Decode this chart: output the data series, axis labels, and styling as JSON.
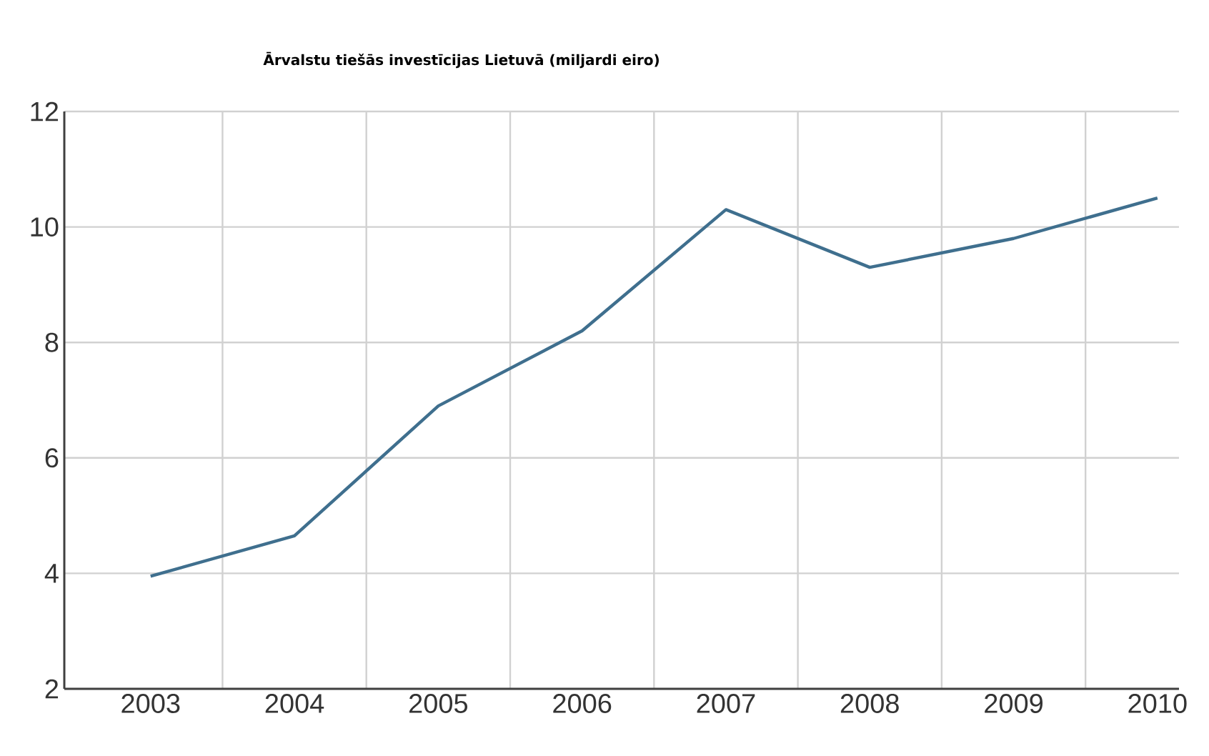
{
  "chart_data": {
    "type": "line",
    "title": "Ārvalstu tiešās investīcijas Lietuvā (miljardi eiro)",
    "categories": [
      "2003",
      "2004",
      "2005",
      "2006",
      "2007",
      "2008",
      "2009",
      "2010"
    ],
    "series": [
      {
        "color": "#3f6f8e",
        "values": [
          3.95,
          4.65,
          6.9,
          8.2,
          10.3,
          9.3,
          9.8,
          10.5
        ]
      }
    ],
    "ylim": [
      2,
      12
    ],
    "yticks": [
      2,
      4,
      6,
      8,
      10,
      12
    ],
    "grid": true,
    "marker": "none",
    "line_style": "solid"
  }
}
